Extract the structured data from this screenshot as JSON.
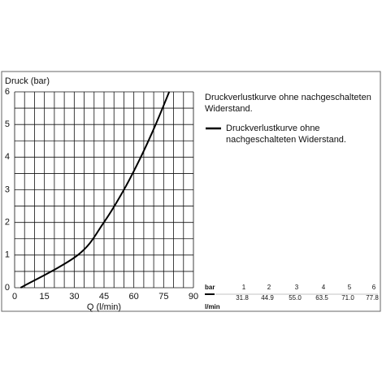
{
  "chart_data": {
    "type": "line",
    "title": "Druckverlustkurve ohne nachgeschalteten Widerstand.",
    "x_label": "Q (l/min)",
    "y_label": "Druck (bar)",
    "xlim": [
      0,
      90
    ],
    "xticks": [
      0,
      15,
      30,
      45,
      60,
      75,
      90
    ],
    "x_minor_ticks": [
      5,
      10,
      20,
      25,
      35,
      40,
      50,
      55,
      65,
      70,
      80,
      85
    ],
    "ylim": [
      0,
      6
    ],
    "yticks": [
      0,
      1,
      2,
      3,
      4,
      5,
      6
    ],
    "y_minor_ticks": [
      0.5,
      1.5,
      2.5,
      3.5,
      4.5,
      5.5
    ],
    "grid": true,
    "series": [
      {
        "name": "Druckverlustkurve ohne nachgeschalteten Widerstand.",
        "color": "#000000",
        "x": [
          3,
          31.8,
          44.9,
          55.0,
          63.5,
          71.0,
          77.8
        ],
        "values": [
          0,
          1,
          2,
          3,
          4,
          5,
          6
        ]
      }
    ]
  },
  "table": {
    "pressure_label": "bar",
    "flow_label": "l/min",
    "pressures": [
      "1",
      "2",
      "3",
      "4",
      "5",
      "6"
    ],
    "flows": [
      "31.8",
      "44.9",
      "55.0",
      "63.5",
      "71.0",
      "77.8"
    ]
  }
}
